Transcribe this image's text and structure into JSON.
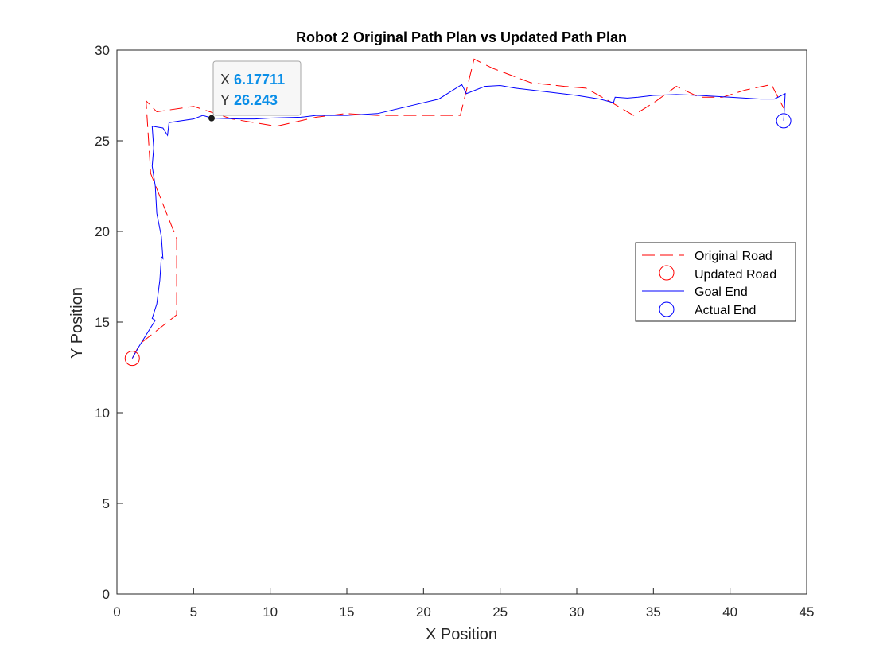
{
  "chart_data": {
    "type": "line",
    "title": "Robot 2 Original Path Plan vs Updated Path Plan",
    "xlabel": "X Position",
    "ylabel": "Y Position",
    "xlim": [
      0,
      45
    ],
    "ylim": [
      0,
      30
    ],
    "xticks": [
      "0",
      "5",
      "10",
      "15",
      "20",
      "25",
      "30",
      "35",
      "40",
      "45"
    ],
    "yticks": [
      "0",
      "5",
      "10",
      "15",
      "20",
      "25",
      "30"
    ],
    "legend_position": "right, middle",
    "legend": [
      "Original Road",
      "Updated Road",
      "Goal End",
      "Actual End"
    ],
    "series": [
      {
        "name": "Original Road",
        "style": "dashed",
        "color": "#ff0000",
        "points": [
          [
            1.0,
            13.0
          ],
          [
            1.5,
            13.8
          ],
          [
            3.9,
            15.4
          ],
          [
            3.9,
            19.6
          ],
          [
            2.2,
            23.2
          ],
          [
            1.9,
            27.2
          ],
          [
            2.6,
            26.6
          ],
          [
            5.0,
            26.9
          ],
          [
            7.5,
            26.2
          ],
          [
            10.4,
            25.8
          ],
          [
            13.0,
            26.3
          ],
          [
            14.9,
            26.5
          ],
          [
            17.0,
            26.4
          ],
          [
            19.5,
            26.4
          ],
          [
            22.4,
            26.4
          ],
          [
            23.3,
            29.5
          ],
          [
            24.5,
            29.0
          ],
          [
            27.0,
            28.2
          ],
          [
            29.2,
            28.0
          ],
          [
            30.6,
            27.9
          ],
          [
            32.5,
            27.0
          ],
          [
            33.7,
            26.4
          ],
          [
            35.2,
            27.2
          ],
          [
            36.5,
            28.0
          ],
          [
            38.0,
            27.4
          ],
          [
            39.5,
            27.4
          ],
          [
            41.0,
            27.8
          ],
          [
            42.7,
            28.1
          ],
          [
            43.5,
            26.8
          ]
        ]
      },
      {
        "name": "Goal End",
        "style": "solid",
        "color": "#0000ff",
        "points": [
          [
            1.0,
            13.0
          ],
          [
            1.4,
            13.6
          ],
          [
            2.5,
            15.1
          ],
          [
            2.3,
            15.2
          ],
          [
            2.6,
            16.0
          ],
          [
            2.8,
            17.3
          ],
          [
            2.9,
            18.6
          ],
          [
            3.0,
            18.5
          ],
          [
            2.9,
            19.7
          ],
          [
            2.6,
            21.0
          ],
          [
            2.5,
            22.5
          ],
          [
            2.3,
            23.6
          ],
          [
            2.4,
            24.6
          ],
          [
            2.3,
            25.8
          ],
          [
            3.0,
            25.7
          ],
          [
            3.3,
            25.3
          ],
          [
            3.4,
            26.0
          ],
          [
            4.2,
            26.1
          ],
          [
            5.0,
            26.2
          ],
          [
            5.6,
            26.4
          ],
          [
            6.2,
            26.25
          ],
          [
            8.0,
            26.2
          ],
          [
            9.0,
            26.2
          ],
          [
            10.0,
            26.25
          ],
          [
            12.0,
            26.3
          ],
          [
            13.0,
            26.4
          ],
          [
            15.0,
            26.4
          ],
          [
            17.0,
            26.5
          ],
          [
            19.0,
            26.9
          ],
          [
            21.0,
            27.3
          ],
          [
            22.5,
            28.1
          ],
          [
            22.8,
            27.6
          ],
          [
            24.0,
            28.0
          ],
          [
            25.0,
            28.05
          ],
          [
            26.0,
            27.9
          ],
          [
            28.0,
            27.7
          ],
          [
            30.0,
            27.5
          ],
          [
            31.5,
            27.3
          ],
          [
            32.4,
            27.1
          ],
          [
            32.5,
            27.4
          ],
          [
            33.3,
            27.35
          ],
          [
            34.0,
            27.4
          ],
          [
            35.0,
            27.5
          ],
          [
            36.5,
            27.55
          ],
          [
            38.0,
            27.5
          ],
          [
            40.0,
            27.4
          ],
          [
            42.0,
            27.3
          ],
          [
            42.9,
            27.3
          ],
          [
            43.6,
            27.6
          ],
          [
            43.5,
            26.1
          ]
        ]
      }
    ],
    "markers": [
      {
        "name": "Updated Road",
        "x": 1.0,
        "y": 13.0,
        "color": "#ff0000"
      },
      {
        "name": "Actual End",
        "x": 43.5,
        "y": 26.1,
        "color": "#0000ff"
      }
    ],
    "datatip": {
      "x_label": "X",
      "x_value": "6.17711",
      "y_label": "Y",
      "y_value": "26.243",
      "x": 6.17711,
      "y": 26.243
    }
  }
}
